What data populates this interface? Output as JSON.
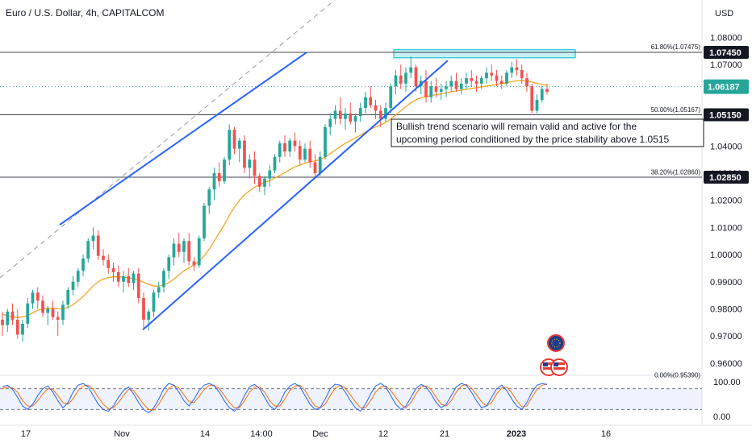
{
  "header": {
    "symbol_title": "Euro / U.S. Dollar, 4h, CAPITALCOM",
    "currency": "USD"
  },
  "chart_data": {
    "type": "candlestick",
    "title": "Euro / U.S. Dollar, 4h, CAPITALCOM",
    "y_unit": "USD",
    "ylim": [
      0.9555,
      1.0855
    ],
    "y_ticks": [
      "1.08000",
      "1.07000",
      "1.04000",
      "1.03000",
      "1.02000",
      "1.01000",
      "1.00000",
      "0.99000",
      "0.98000",
      "0.97000",
      "0.96000"
    ],
    "x_ticks": [
      "17",
      "Nov",
      "14",
      "14:00",
      "Dec",
      "12",
      "21",
      "2023",
      "16"
    ],
    "grid": false,
    "price_levels": [
      {
        "label": "1.07450",
        "value": 1.0745
      },
      {
        "label": "1.05150",
        "value": 1.0515
      },
      {
        "label": "1.02850",
        "value": 1.0285
      }
    ],
    "last_price": {
      "label": "1.06187",
      "value": 1.06187,
      "color": "#26a69a"
    },
    "fibonacci": [
      {
        "label": "61.80%(1.07475)",
        "value": 1.07475
      },
      {
        "label": "50.00%(1.05167)",
        "value": 1.05167
      },
      {
        "label": "38.20%(1.02860)",
        "value": 1.0286
      },
      {
        "label": "0.00%(0.95390)",
        "value": 0.9539
      }
    ],
    "resistance_zone": {
      "from": 1.0725,
      "to": 1.0755,
      "color": "#00bcd4"
    },
    "channel": {
      "upper": [
        [
          0.965,
          1.011
        ],
        [
          0.988,
          1.0745
        ]
      ],
      "lower": [
        [
          0.972,
          0.9723
        ],
        [
          1.012,
          1.0715
        ]
      ],
      "color": "#2962ff"
    },
    "annotation": "Bullish trend scenario will remain valid and active for the upcoming period conditioned by the price stability above 1.0515",
    "candles": [
      [
        0.976,
        0.979,
        0.97,
        0.974
      ],
      [
        0.974,
        0.98,
        0.9715,
        0.979
      ],
      [
        0.979,
        0.982,
        0.974,
        0.976
      ],
      [
        0.976,
        0.98,
        0.969,
        0.9705
      ],
      [
        0.9705,
        0.976,
        0.968,
        0.9745
      ],
      [
        0.9745,
        0.984,
        0.973,
        0.982
      ],
      [
        0.982,
        0.987,
        0.98,
        0.986
      ],
      [
        0.986,
        0.988,
        0.98,
        0.983
      ],
      [
        0.983,
        0.985,
        0.977,
        0.9785
      ],
      [
        0.9785,
        0.981,
        0.974,
        0.98
      ],
      [
        0.98,
        0.983,
        0.976,
        0.977
      ],
      [
        0.977,
        0.979,
        0.97,
        0.976
      ],
      [
        0.976,
        0.983,
        0.974,
        0.9815
      ],
      [
        0.9815,
        0.988,
        0.98,
        0.987
      ],
      [
        0.987,
        0.992,
        0.985,
        0.99
      ],
      [
        0.99,
        0.995,
        0.988,
        0.994
      ],
      [
        0.994,
        1.0,
        0.992,
        0.9985
      ],
      [
        0.9985,
        1.006,
        0.997,
        1.005
      ],
      [
        1.005,
        1.01,
        1.002,
        1.007
      ],
      [
        1.007,
        1.009,
        0.998,
        0.9995
      ],
      [
        0.9995,
        1.002,
        0.996,
        0.998
      ],
      [
        0.998,
        1.0,
        0.993,
        0.995
      ],
      [
        0.995,
        0.997,
        0.99,
        0.9935
      ],
      [
        0.9935,
        0.996,
        0.988,
        0.99
      ],
      [
        0.99,
        0.994,
        0.986,
        0.992
      ],
      [
        0.992,
        0.995,
        0.988,
        0.9895
      ],
      [
        0.9895,
        0.994,
        0.987,
        0.993
      ],
      [
        0.993,
        0.995,
        0.982,
        0.984
      ],
      [
        0.984,
        0.986,
        0.973,
        0.976
      ],
      [
        0.976,
        0.98,
        0.972,
        0.979
      ],
      [
        0.979,
        0.987,
        0.977,
        0.986
      ],
      [
        0.986,
        0.99,
        0.984,
        0.988
      ],
      [
        0.988,
        0.995,
        0.986,
        0.994
      ],
      [
        0.994,
        1.0,
        0.991,
        0.999
      ],
      [
        0.999,
        1.006,
        0.996,
        1.004
      ],
      [
        1.004,
        1.008,
        0.999,
        1.001
      ],
      [
        1.001,
        1.006,
        0.997,
        1.005
      ],
      [
        1.005,
        1.008,
        0.996,
        0.9975
      ],
      [
        0.9975,
        0.999,
        0.994,
        0.996
      ],
      [
        0.996,
        1.007,
        0.995,
        1.006
      ],
      [
        1.006,
        1.019,
        1.005,
        1.018
      ],
      [
        1.018,
        1.025,
        1.015,
        1.024
      ],
      [
        1.024,
        1.032,
        1.02,
        1.03
      ],
      [
        1.03,
        1.034,
        1.025,
        1.027
      ],
      [
        1.027,
        1.036,
        1.026,
        1.035
      ],
      [
        1.035,
        1.048,
        1.033,
        1.046
      ],
      [
        1.046,
        1.047,
        1.037,
        1.039
      ],
      [
        1.039,
        1.043,
        1.034,
        1.042
      ],
      [
        1.042,
        1.044,
        1.03,
        1.032
      ],
      [
        1.032,
        1.037,
        1.028,
        1.035
      ],
      [
        1.035,
        1.038,
        1.026,
        1.029
      ],
      [
        1.029,
        1.03,
        1.023,
        1.025
      ],
      [
        1.025,
        1.029,
        1.022,
        1.028
      ],
      [
        1.028,
        1.033,
        1.025,
        1.031
      ],
      [
        1.031,
        1.037,
        1.03,
        1.036
      ],
      [
        1.036,
        1.042,
        1.034,
        1.041
      ],
      [
        1.041,
        1.044,
        1.036,
        1.038
      ],
      [
        1.038,
        1.043,
        1.036,
        1.042
      ],
      [
        1.042,
        1.045,
        1.038,
        1.04
      ],
      [
        1.04,
        1.042,
        1.033,
        1.035
      ],
      [
        1.035,
        1.041,
        1.034,
        1.039
      ],
      [
        1.039,
        1.042,
        1.032,
        1.034
      ],
      [
        1.034,
        1.037,
        1.028,
        1.03
      ],
      [
        1.03,
        1.038,
        1.029,
        1.036
      ],
      [
        1.036,
        1.048,
        1.035,
        1.047
      ],
      [
        1.047,
        1.052,
        1.044,
        1.05
      ],
      [
        1.05,
        1.055,
        1.048,
        1.053
      ],
      [
        1.053,
        1.058,
        1.048,
        1.05
      ],
      [
        1.05,
        1.054,
        1.046,
        1.052
      ],
      [
        1.052,
        1.056,
        1.048,
        1.049
      ],
      [
        1.049,
        1.052,
        1.045,
        1.051
      ],
      [
        1.051,
        1.056,
        1.049,
        1.054
      ],
      [
        1.054,
        1.06,
        1.052,
        1.058
      ],
      [
        1.058,
        1.062,
        1.054,
        1.055
      ],
      [
        1.055,
        1.057,
        1.05,
        1.053
      ],
      [
        1.053,
        1.055,
        1.047,
        1.05
      ],
      [
        1.05,
        1.056,
        1.049,
        1.054
      ],
      [
        1.054,
        1.063,
        1.052,
        1.062
      ],
      [
        1.062,
        1.068,
        1.059,
        1.066
      ],
      [
        1.066,
        1.07,
        1.061,
        1.063
      ],
      [
        1.063,
        1.069,
        1.06,
        1.067
      ],
      [
        1.067,
        1.073,
        1.065,
        1.069
      ],
      [
        1.069,
        1.07,
        1.06,
        1.062
      ],
      [
        1.062,
        1.066,
        1.059,
        1.064
      ],
      [
        1.064,
        1.068,
        1.056,
        1.058
      ],
      [
        1.058,
        1.064,
        1.056,
        1.062
      ],
      [
        1.062,
        1.065,
        1.058,
        1.06
      ],
      [
        1.06,
        1.063,
        1.057,
        1.061
      ],
      [
        1.061,
        1.064,
        1.058,
        1.062
      ],
      [
        1.062,
        1.066,
        1.06,
        1.064
      ],
      [
        1.064,
        1.067,
        1.06,
        1.061
      ],
      [
        1.061,
        1.065,
        1.059,
        1.063
      ],
      [
        1.063,
        1.067,
        1.061,
        1.065
      ],
      [
        1.065,
        1.068,
        1.062,
        1.064
      ],
      [
        1.064,
        1.066,
        1.06,
        1.063
      ],
      [
        1.063,
        1.066,
        1.061,
        1.065
      ],
      [
        1.065,
        1.069,
        1.063,
        1.067
      ],
      [
        1.067,
        1.07,
        1.064,
        1.066
      ],
      [
        1.066,
        1.068,
        1.062,
        1.064
      ],
      [
        1.064,
        1.066,
        1.061,
        1.063
      ],
      [
        1.063,
        1.068,
        1.062,
        1.067
      ],
      [
        1.067,
        1.071,
        1.065,
        1.069
      ],
      [
        1.069,
        1.072,
        1.066,
        1.068
      ],
      [
        1.068,
        1.07,
        1.063,
        1.065
      ],
      [
        1.065,
        1.067,
        1.06,
        1.062
      ],
      [
        1.062,
        1.063,
        1.052,
        1.053
      ],
      [
        1.053,
        1.059,
        1.052,
        1.057
      ],
      [
        1.057,
        1.062,
        1.056,
        1.061
      ],
      [
        1.061,
        1.063,
        1.059,
        1.06
      ]
    ],
    "sma": [
      0.978,
      0.9775,
      0.977,
      0.9768,
      0.977,
      0.9775,
      0.9785,
      0.9795,
      0.98,
      0.9802,
      0.9802,
      0.98,
      0.98,
      0.9805,
      0.9815,
      0.983,
      0.9845,
      0.9865,
      0.9885,
      0.99,
      0.991,
      0.9915,
      0.9918,
      0.9918,
      0.9917,
      0.9914,
      0.9911,
      0.9906,
      0.9898,
      0.989,
      0.9884,
      0.9884,
      0.9888,
      0.9897,
      0.991,
      0.9925,
      0.994,
      0.9952,
      0.9962,
      0.9975,
      0.9995,
      1.002,
      1.005,
      1.008,
      1.011,
      1.0145,
      1.0175,
      1.02,
      1.022,
      1.0235,
      1.0248,
      1.0258,
      1.0266,
      1.0273,
      1.0282,
      1.0292,
      1.0302,
      1.0313,
      1.0323,
      1.033,
      1.0337,
      1.0342,
      1.0345,
      1.035,
      1.036,
      1.0372,
      1.0385,
      1.0398,
      1.041,
      1.042,
      1.043,
      1.044,
      1.0452,
      1.0462,
      1.047,
      1.0478,
      1.0487,
      1.05,
      1.0515,
      1.053,
      1.0545,
      1.056,
      1.057,
      1.0578,
      1.0582,
      1.0586,
      1.0589,
      1.0592,
      1.0596,
      1.06,
      1.0603,
      1.0606,
      1.0609,
      1.0612,
      1.0615,
      1.0618,
      1.0621,
      1.0624,
      1.0627,
      1.063,
      1.0633,
      1.0637,
      1.0641,
      1.0642,
      1.0641,
      1.0636,
      1.063,
      1.0627,
      1.0625
    ],
    "oscillator": {
      "levels": [
        "100.00",
        "0.00"
      ],
      "band": [
        20,
        80
      ],
      "k_color": "#2962ff",
      "d_color": "#ff6d00",
      "k": [
        85,
        90,
        78,
        55,
        30,
        20,
        35,
        60,
        80,
        88,
        70,
        45,
        25,
        40,
        70,
        90,
        95,
        85,
        60,
        35,
        20,
        15,
        30,
        55,
        75,
        85,
        65,
        40,
        20,
        10,
        25,
        50,
        80,
        95,
        90,
        70,
        45,
        30,
        50,
        75,
        90,
        95,
        88,
        70,
        45,
        25,
        15,
        30,
        60,
        85,
        92,
        80,
        55,
        30,
        20,
        40,
        70,
        88,
        95,
        85,
        60,
        35,
        20,
        25,
        50,
        80,
        93,
        90,
        70,
        45,
        25,
        15,
        35,
        65,
        88,
        95,
        85,
        60,
        35,
        20,
        30,
        55,
        80,
        92,
        85,
        65,
        40,
        25,
        35,
        60,
        85,
        95,
        90,
        70,
        45,
        25,
        30,
        55,
        80,
        90,
        75,
        50,
        30,
        20,
        40,
        70,
        90,
        95,
        92
      ],
      "d": [
        80,
        85,
        82,
        70,
        45,
        30,
        30,
        45,
        65,
        80,
        78,
        60,
        40,
        35,
        50,
        75,
        88,
        90,
        78,
        55,
        35,
        22,
        25,
        40,
        60,
        78,
        75,
        55,
        35,
        20,
        18,
        35,
        60,
        82,
        90,
        82,
        62,
        42,
        40,
        58,
        78,
        90,
        90,
        80,
        60,
        40,
        25,
        25,
        45,
        70,
        85,
        85,
        70,
        45,
        30,
        30,
        50,
        75,
        88,
        90,
        75,
        50,
        30,
        25,
        35,
        60,
        82,
        90,
        82,
        62,
        42,
        25,
        25,
        45,
        70,
        85,
        88,
        75,
        55,
        35,
        25,
        40,
        65,
        85,
        88,
        78,
        55,
        35,
        30,
        45,
        70,
        88,
        92,
        82,
        62,
        42,
        30,
        40,
        65,
        82,
        85,
        68,
        45,
        28,
        30,
        55,
        78,
        90,
        93
      ]
    }
  }
}
